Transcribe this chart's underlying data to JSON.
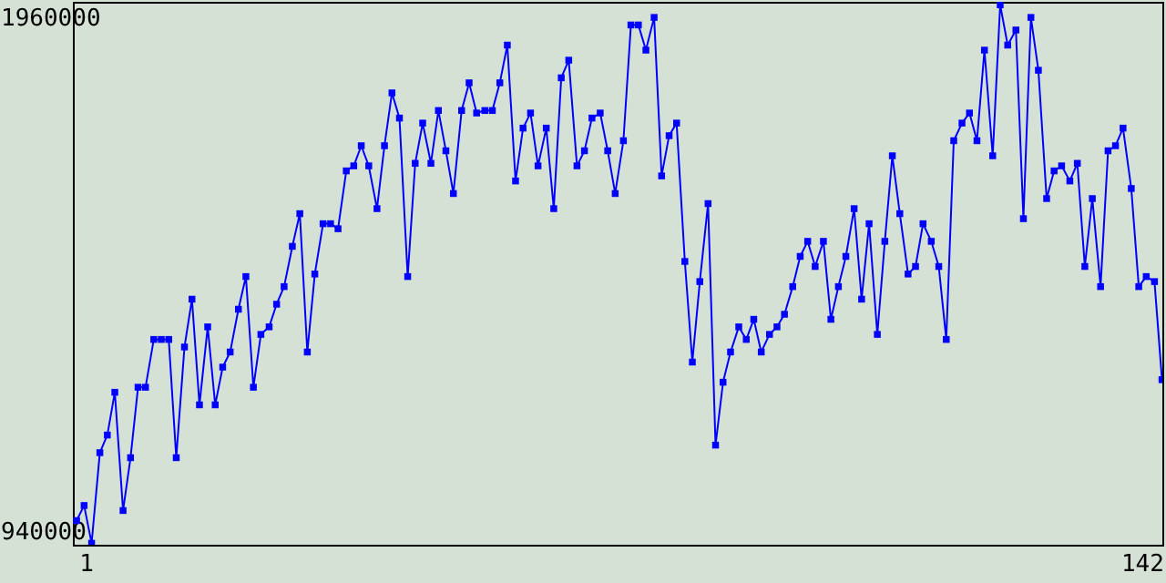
{
  "chart_data": {
    "type": "line",
    "x": [
      -0.2,
      0.8,
      1.8,
      2.9,
      3.9,
      4.9,
      6.0,
      7.0,
      8.0,
      9.0,
      10.1,
      11.1,
      12.1,
      13.1,
      14.2,
      15.2,
      16.2,
      17.3,
      18.3,
      19.3,
      20.3,
      21.4,
      22.4,
      23.4,
      24.4,
      25.5,
      26.5,
      27.5,
      28.6,
      29.6,
      30.6,
      31.6,
      32.7,
      33.7,
      34.7,
      35.8,
      36.8,
      37.8,
      38.8,
      39.9,
      40.9,
      41.9,
      42.9,
      44.0,
      45.0,
      46.0,
      47.1,
      48.1,
      49.1,
      50.1,
      51.2,
      52.2,
      53.2,
      54.3,
      55.3,
      56.3,
      57.3,
      58.4,
      59.4,
      60.4,
      61.4,
      62.5,
      63.5,
      64.5,
      65.5,
      66.6,
      67.6,
      68.6,
      69.7,
      70.7,
      71.7,
      72.8,
      73.8,
      74.8,
      75.8,
      76.9,
      77.9,
      78.9,
      79.9,
      81.0,
      82.0,
      83.0,
      84.1,
      85.1,
      86.1,
      87.1,
      88.2,
      89.2,
      90.2,
      91.2,
      92.3,
      93.3,
      94.3,
      95.4,
      96.4,
      97.4,
      98.4,
      99.5,
      100.5,
      101.5,
      102.5,
      103.6,
      104.6,
      105.6,
      106.7,
      107.7,
      108.7,
      109.7,
      110.8,
      111.8,
      112.8,
      113.9,
      114.9,
      115.9,
      116.9,
      118.0,
      119.0,
      120.0,
      121.0,
      122.1,
      123.1,
      124.1,
      125.2,
      126.2,
      127.2,
      128.2,
      129.3,
      130.3,
      131.3,
      132.4,
      133.4,
      134.4,
      135.4,
      136.5,
      137.5,
      138.5,
      139.5,
      140.6,
      141.6,
      142.6,
      143.7,
      144.7
    ],
    "series": [
      {
        "color": "#0000ff",
        "values": [
          960000,
          990000,
          915000,
          1095000,
          1130000,
          1215000,
          980000,
          1085000,
          1225000,
          1225000,
          1320000,
          1320000,
          1320000,
          1085000,
          1305000,
          1400000,
          1190000,
          1345000,
          1190000,
          1265000,
          1295000,
          1380000,
          1445000,
          1225000,
          1330000,
          1345000,
          1390000,
          1425000,
          1505000,
          1570000,
          1295000,
          1450000,
          1550000,
          1550000,
          1540000,
          1655000,
          1665000,
          1705000,
          1665000,
          1580000,
          1705000,
          1810000,
          1760000,
          1445000,
          1670000,
          1750000,
          1670000,
          1775000,
          1695000,
          1610000,
          1775000,
          1830000,
          1770000,
          1775000,
          1775000,
          1830000,
          1905000,
          1635000,
          1740000,
          1770000,
          1665000,
          1740000,
          1580000,
          1840000,
          1875000,
          1665000,
          1695000,
          1760000,
          1770000,
          1695000,
          1610000,
          1715000,
          1945000,
          1945000,
          1895000,
          1960000,
          1645000,
          1725000,
          1750000,
          1475000,
          1275000,
          1435000,
          1590000,
          1110000,
          1235000,
          1295000,
          1345000,
          1320000,
          1360000,
          1295000,
          1330000,
          1345000,
          1370000,
          1425000,
          1485000,
          1515000,
          1465000,
          1515000,
          1360000,
          1425000,
          1485000,
          1580000,
          1400000,
          1550000,
          1330000,
          1515000,
          1685000,
          1570000,
          1450000,
          1465000,
          1550000,
          1515000,
          1465000,
          1320000,
          1715000,
          1750000,
          1770000,
          1715000,
          1895000,
          1685000,
          1985000,
          1905000,
          1935000,
          1560000,
          1960000,
          1855000,
          1600000,
          1655000,
          1665000,
          1635000,
          1670000,
          1465000,
          1600000,
          1425000,
          1695000,
          1705000,
          1740000,
          1620000,
          1425000,
          1445000,
          1435000,
          1240000
        ]
      }
    ],
    "xlim": [
      -0.7,
      144.75
    ],
    "xticks": [
      1,
      142
    ],
    "ylim": [
      912000,
      1991000
    ],
    "yticks": [
      940000,
      1960000
    ],
    "marker": "square",
    "grid": false
  }
}
